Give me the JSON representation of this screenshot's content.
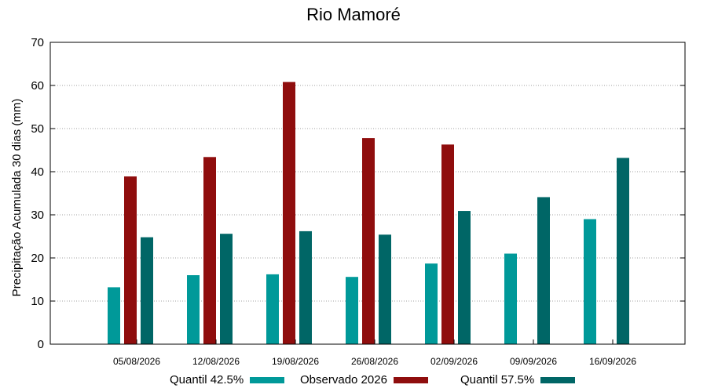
{
  "chart_data": {
    "type": "bar",
    "title": "Rio Mamoré",
    "ylabel": "Precipitação Acumulada 30 dias (mm)",
    "xlabel": "",
    "ylim": [
      0,
      70
    ],
    "yticks": [
      0,
      10,
      20,
      30,
      40,
      50,
      60,
      70
    ],
    "grid": true,
    "legend_position": "bottom",
    "categories": [
      "05/08/2026",
      "12/08/2026",
      "19/08/2026",
      "26/08/2026",
      "02/09/2026",
      "09/09/2026",
      "16/09/2026"
    ],
    "series": [
      {
        "name": "Quantil 42.5%",
        "color": "#009999",
        "values": [
          13.2,
          16.0,
          16.2,
          15.6,
          18.7,
          21.0,
          29.0
        ]
      },
      {
        "name": "Observado 2026",
        "color": "#8f0d0d",
        "values": [
          38.9,
          43.4,
          60.8,
          47.8,
          46.3,
          null,
          null
        ]
      },
      {
        "name": "Quantil 57.5%",
        "color": "#006666",
        "values": [
          24.8,
          25.6,
          26.2,
          25.4,
          30.9,
          34.1,
          43.2
        ]
      }
    ]
  }
}
